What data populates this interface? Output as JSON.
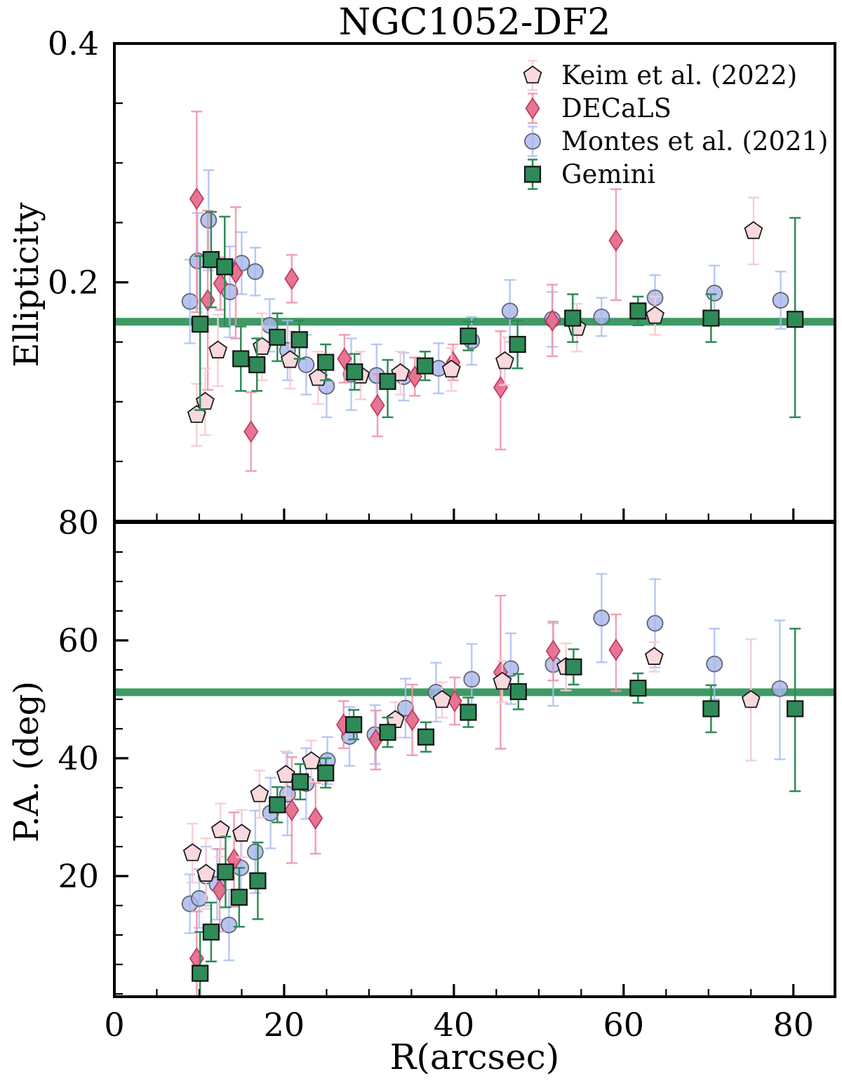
{
  "header": {
    "title": "NGC1052-DF2"
  },
  "axes": {
    "x_label": "R(arcsec)",
    "top_y_label": "Ellipticity",
    "bottom_y_label": "P.A. (deg)",
    "x_tick_labels": [
      [
        0,
        "0"
      ],
      [
        20,
        "20"
      ],
      [
        40,
        "40"
      ],
      [
        60,
        "60"
      ],
      [
        80,
        "80"
      ]
    ],
    "x_minor_step": 5,
    "top_y_tick_labels": [
      [
        0.4,
        "0.4"
      ],
      [
        0.2,
        "0.2"
      ]
    ],
    "top_y_minor_ticks": [
      0.35,
      0.3,
      0.25,
      0.15,
      0.1,
      0.05
    ],
    "bottom_y_tick_labels": [
      [
        80,
        "80"
      ],
      [
        60,
        "60"
      ],
      [
        40,
        "40"
      ],
      [
        20,
        "20"
      ]
    ],
    "bottom_y_minor_ticks": [
      75,
      70,
      65,
      55,
      50,
      45,
      35,
      30,
      25,
      15,
      10,
      5,
      0
    ]
  },
  "legend": {
    "entries": [
      {
        "id": "keim",
        "label": "Keim et al. (2022)",
        "marker": "pentagon"
      },
      {
        "id": "decals",
        "label": "DECaLS",
        "marker": "diamond"
      },
      {
        "id": "montes",
        "label": "Montes et al. (2021)",
        "marker": "circle"
      },
      {
        "id": "gemini",
        "label": "Gemini",
        "marker": "square"
      }
    ]
  },
  "colors": {
    "axis": "#000000",
    "reference_line": "#2e9157",
    "series": {
      "keim": {
        "fill": "#f9d8de",
        "edge": "#1c1c1c",
        "err": "#f6cbd4",
        "fill_opacity": 1.0,
        "err_opacity": 0.9
      },
      "decals": {
        "fill": "#e5708e",
        "edge": "#c23a62",
        "err": "#ef92a8",
        "fill_opacity": 0.95,
        "err_opacity": 0.85
      },
      "montes": {
        "fill": "#a8b7eb",
        "edge": "#5f6570",
        "err": "#a9bdf2",
        "fill_opacity": 0.8,
        "err_opacity": 0.8
      },
      "gemini": {
        "fill": "#2e8b57",
        "edge": "#151515",
        "err": "#2e8b57",
        "fill_opacity": 1.0,
        "err_opacity": 1.0
      }
    }
  },
  "chart_data": {
    "type": "scatter",
    "title": "NGC1052-DF2",
    "xlabel": "R(arcsec)",
    "x_range": [
      0,
      84.9
    ],
    "grid": false,
    "legend_position": "upper right",
    "point_format": "[R_arcsec, value, err_minus, err_plus]",
    "panels": [
      {
        "id": "ellipticity",
        "ylabel": "Ellipticity",
        "y_range": [
          0,
          0.4006
        ],
        "reference_line": 0.167,
        "series": {
          "keim": [
            [
              9.7,
              0.089,
              0.026,
              0.026
            ],
            [
              10.7,
              0.1,
              0.028,
              0.028
            ],
            [
              12.2,
              0.143,
              0.03,
              0.03
            ],
            [
              17.4,
              0.146,
              0.028,
              0.028
            ],
            [
              20.7,
              0.135,
              0.024,
              0.024
            ],
            [
              24.0,
              0.12,
              0.022,
              0.022
            ],
            [
              29.0,
              0.122,
              0.02,
              0.02
            ],
            [
              33.7,
              0.124,
              0.018,
              0.018
            ],
            [
              39.7,
              0.127,
              0.018,
              0.018
            ],
            [
              46.0,
              0.134,
              0.02,
              0.02
            ],
            [
              54.5,
              0.162,
              0.02,
              0.02
            ],
            [
              63.7,
              0.172,
              0.016,
              0.016
            ],
            [
              75.3,
              0.243,
              0.028,
              0.028
            ]
          ],
          "decals": [
            [
              9.7,
              0.27,
              0.095,
              0.073
            ],
            [
              11.0,
              0.185,
              0.075,
              0.075
            ],
            [
              12.5,
              0.199,
              0.022,
              0.022
            ],
            [
              14.3,
              0.208,
              0.055,
              0.055
            ],
            [
              16.1,
              0.075,
              0.033,
              0.033
            ],
            [
              20.9,
              0.203,
              0.02,
              0.02
            ],
            [
              27.1,
              0.136,
              0.02,
              0.02
            ],
            [
              31.0,
              0.097,
              0.026,
              0.026
            ],
            [
              35.4,
              0.121,
              0.016,
              0.016
            ],
            [
              39.9,
              0.133,
              0.015,
              0.015
            ],
            [
              45.5,
              0.112,
              0.052,
              0.047
            ],
            [
              51.6,
              0.168,
              0.03,
              0.03
            ],
            [
              59.1,
              0.235,
              0.05,
              0.043
            ]
          ],
          "montes": [
            [
              8.9,
              0.184,
              0.035,
              0.035
            ],
            [
              9.8,
              0.218,
              0.04,
              0.04
            ],
            [
              11.1,
              0.252,
              0.042,
              0.042
            ],
            [
              13.6,
              0.192,
              0.038,
              0.038
            ],
            [
              15.0,
              0.216,
              0.026,
              0.026
            ],
            [
              16.6,
              0.209,
              0.02,
              0.02
            ],
            [
              18.3,
              0.164,
              0.022,
              0.022
            ],
            [
              20.4,
              0.143,
              0.025,
              0.025
            ],
            [
              22.6,
              0.131,
              0.025,
              0.025
            ],
            [
              25.0,
              0.113,
              0.026,
              0.026
            ],
            [
              27.9,
              0.123,
              0.03,
              0.03
            ],
            [
              30.9,
              0.122,
              0.026,
              0.026
            ],
            [
              34.1,
              0.121,
              0.02,
              0.02
            ],
            [
              38.2,
              0.128,
              0.021,
              0.021
            ],
            [
              42.1,
              0.151,
              0.02,
              0.02
            ],
            [
              46.6,
              0.176,
              0.026,
              0.026
            ],
            [
              51.6,
              0.169,
              0.023,
              0.023
            ],
            [
              57.4,
              0.171,
              0.016,
              0.016
            ],
            [
              63.7,
              0.187,
              0.019,
              0.019
            ],
            [
              70.7,
              0.191,
              0.023,
              0.023
            ],
            [
              78.5,
              0.185,
              0.024,
              0.024
            ]
          ],
          "gemini": [
            [
              10.1,
              0.165,
              0.072,
              0.057
            ],
            [
              11.4,
              0.219,
              0.04,
              0.04
            ],
            [
              13.0,
              0.213,
              0.05,
              0.042
            ],
            [
              14.9,
              0.136,
              0.027,
              0.027
            ],
            [
              16.8,
              0.131,
              0.022,
              0.022
            ],
            [
              19.2,
              0.154,
              0.02,
              0.02
            ],
            [
              21.8,
              0.152,
              0.016,
              0.016
            ],
            [
              24.9,
              0.133,
              0.015,
              0.015
            ],
            [
              28.3,
              0.125,
              0.015,
              0.015
            ],
            [
              32.2,
              0.117,
              0.03,
              0.018
            ],
            [
              36.6,
              0.13,
              0.012,
              0.012
            ],
            [
              41.7,
              0.155,
              0.012,
              0.012
            ],
            [
              47.5,
              0.148,
              0.02,
              0.02
            ],
            [
              54.0,
              0.17,
              0.02,
              0.02
            ],
            [
              61.7,
              0.176,
              0.012,
              0.012
            ],
            [
              70.3,
              0.17,
              0.02,
              0.02
            ],
            [
              80.2,
              0.169,
              0.082,
              0.085
            ]
          ]
        }
      },
      {
        "id": "position_angle",
        "ylabel": "P.A. (deg)",
        "y_range": [
          -0.5,
          80.2
        ],
        "reference_line": 51.2,
        "series": {
          "keim": [
            [
              9.2,
              23.9,
              5,
              5
            ],
            [
              10.8,
              20.4,
              6,
              6
            ],
            [
              12.5,
              27.8,
              4.5,
              4.5
            ],
            [
              15.0,
              27.2,
              4,
              4
            ],
            [
              17.1,
              33.9,
              4,
              4
            ],
            [
              20.2,
              37.2,
              4,
              4
            ],
            [
              23.2,
              39.5,
              3.5,
              3.5
            ],
            [
              33.1,
              46.5,
              3,
              3
            ],
            [
              38.6,
              49.9,
              3,
              3
            ],
            [
              45.7,
              53.0,
              3.5,
              3.5
            ],
            [
              53.2,
              55.5,
              4,
              4
            ],
            [
              63.6,
              57.2,
              2.5,
              2.5
            ],
            [
              75.0,
              49.9,
              10.3,
              10.3
            ]
          ],
          "decals": [
            [
              9.7,
              6.0,
              8,
              8
            ],
            [
              12.4,
              17.6,
              7,
              7
            ],
            [
              14.1,
              22.8,
              8,
              8
            ],
            [
              20.9,
              31.2,
              9,
              9
            ],
            [
              23.7,
              29.8,
              6,
              6
            ],
            [
              27.0,
              45.7,
              4,
              4
            ],
            [
              30.8,
              43.1,
              5,
              5
            ],
            [
              35.1,
              46.5,
              6,
              6
            ],
            [
              40.1,
              49.7,
              4,
              4
            ],
            [
              45.5,
              54.6,
              13,
              13
            ],
            [
              51.7,
              58.2,
              5,
              5
            ],
            [
              59.1,
              58.4,
              7,
              6
            ]
          ],
          "montes": [
            [
              8.9,
              15.3,
              5,
              5
            ],
            [
              10.0,
              16.2,
              5,
              5
            ],
            [
              10.8,
              20.0,
              5,
              5
            ],
            [
              12.1,
              18.6,
              6,
              6
            ],
            [
              13.5,
              11.7,
              6,
              6
            ],
            [
              14.9,
              21.4,
              6,
              6
            ],
            [
              16.6,
              24.1,
              7,
              7
            ],
            [
              18.4,
              30.7,
              6,
              6
            ],
            [
              20.4,
              33.9,
              7,
              7
            ],
            [
              22.6,
              35.7,
              6,
              6
            ],
            [
              25.1,
              39.6,
              4,
              4
            ],
            [
              27.7,
              43.7,
              5,
              5
            ],
            [
              30.7,
              44.0,
              5,
              5
            ],
            [
              34.3,
              48.5,
              5,
              5
            ],
            [
              37.9,
              51.2,
              5,
              5
            ],
            [
              42.1,
              53.4,
              6,
              6
            ],
            [
              46.7,
              55.2,
              6,
              6
            ],
            [
              51.7,
              55.9,
              7,
              7
            ],
            [
              57.4,
              63.8,
              7.5,
              7.5
            ],
            [
              63.7,
              62.9,
              7.5,
              7.5
            ],
            [
              70.7,
              56.0,
              6,
              6
            ],
            [
              78.4,
              51.8,
              12,
              11.6
            ]
          ],
          "gemini": [
            [
              10.1,
              3.5,
              6,
              7
            ],
            [
              11.4,
              10.5,
              5,
              5
            ],
            [
              13.1,
              20.7,
              6,
              6
            ],
            [
              14.7,
              16.4,
              5,
              5
            ],
            [
              16.9,
              19.2,
              6.5,
              6.5
            ],
            [
              19.2,
              32.1,
              3,
              3
            ],
            [
              21.9,
              36.0,
              3,
              3
            ],
            [
              24.9,
              37.5,
              2.5,
              2.5
            ],
            [
              28.2,
              45.7,
              2.5,
              2.5
            ],
            [
              32.2,
              44.4,
              2.5,
              2.5
            ],
            [
              36.7,
              43.6,
              2.5,
              2.5
            ],
            [
              41.7,
              47.8,
              2.5,
              2.5
            ],
            [
              47.6,
              51.3,
              3,
              3
            ],
            [
              54.1,
              55.5,
              3,
              3
            ],
            [
              61.7,
              51.9,
              2.5,
              2.5
            ],
            [
              70.3,
              48.4,
              4,
              4
            ],
            [
              80.2,
              48.4,
              14,
              13.6
            ]
          ]
        }
      }
    ]
  }
}
